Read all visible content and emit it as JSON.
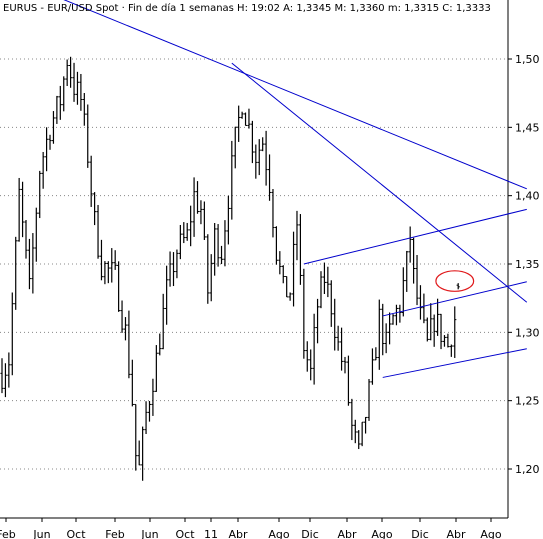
{
  "chart_data": {
    "type": "ohlc",
    "title": "EURUS - EUR/USD Spot · Fin de día 1 semanas  H: 19:02  A: 1,3345  M: 1,3360  m: 1,3315  C: 1,3333",
    "xlabel": "",
    "ylabel": "",
    "ylim": [
      1.18,
      1.53
    ],
    "y_ticks": [
      "1,20",
      "1,25",
      "1,30",
      "1,35",
      "1,40",
      "1,45",
      "1,50"
    ],
    "x_ticks": [
      "Feb",
      "Jun",
      "Oct",
      "Feb",
      "Jun",
      "Oct",
      "11",
      "Abr",
      "Ago",
      "Dic",
      "Abr",
      "Ago",
      "Dic",
      "Abr",
      "Ago"
    ],
    "grid": true,
    "grid_style": "horizontal dotted",
    "last_bar": {
      "open": 1.3345,
      "high": 1.336,
      "low": 1.3315,
      "close": 1.3333
    },
    "price_path_knots": [
      [
        0,
        1.27
      ],
      [
        2,
        1.28
      ],
      [
        5,
        1.4
      ],
      [
        8,
        1.33
      ],
      [
        11,
        1.42
      ],
      [
        14,
        1.45
      ],
      [
        17,
        1.47
      ],
      [
        19,
        1.5
      ],
      [
        21,
        1.48
      ],
      [
        23,
        1.47
      ],
      [
        25,
        1.43
      ],
      [
        27,
        1.38
      ],
      [
        29,
        1.35
      ],
      [
        33,
        1.34
      ],
      [
        36,
        1.3
      ],
      [
        38,
        1.25
      ],
      [
        39,
        1.21
      ],
      [
        40,
        1.2
      ],
      [
        42,
        1.24
      ],
      [
        45,
        1.28
      ],
      [
        48,
        1.33
      ],
      [
        51,
        1.36
      ],
      [
        54,
        1.37
      ],
      [
        56,
        1.4
      ],
      [
        58,
        1.39
      ],
      [
        60,
        1.33
      ],
      [
        62,
        1.37
      ],
      [
        64,
        1.36
      ],
      [
        66,
        1.4
      ],
      [
        68,
        1.44
      ],
      [
        70,
        1.47
      ],
      [
        72,
        1.45
      ],
      [
        74,
        1.43
      ],
      [
        76,
        1.44
      ],
      [
        78,
        1.41
      ],
      [
        80,
        1.36
      ],
      [
        82,
        1.33
      ],
      [
        84,
        1.33
      ],
      [
        86,
        1.38
      ],
      [
        88,
        1.29
      ],
      [
        90,
        1.27
      ],
      [
        92,
        1.32
      ],
      [
        94,
        1.34
      ],
      [
        96,
        1.32
      ],
      [
        98,
        1.29
      ],
      [
        100,
        1.27
      ],
      [
        102,
        1.23
      ],
      [
        104,
        1.21
      ],
      [
        106,
        1.24
      ],
      [
        108,
        1.27
      ],
      [
        110,
        1.31
      ],
      [
        112,
        1.29
      ],
      [
        114,
        1.31
      ],
      [
        116,
        1.32
      ],
      [
        118,
        1.35
      ],
      [
        119,
        1.37
      ],
      [
        120,
        1.34
      ],
      [
        122,
        1.31
      ],
      [
        124,
        1.29
      ],
      [
        126,
        1.31
      ],
      [
        128,
        1.3
      ],
      [
        130,
        1.29
      ],
      [
        132,
        1.31
      ],
      [
        133,
        1.3333
      ]
    ],
    "annotations": [
      {
        "kind": "trendline",
        "color": "#0000cc",
        "from": [
          -3,
          1.565
        ],
        "to": [
          153,
          1.405
        ]
      },
      {
        "kind": "trendline",
        "color": "#0000cc",
        "from": [
          67,
          1.497
        ],
        "to": [
          153,
          1.322
        ]
      },
      {
        "kind": "trendline",
        "color": "#0000cc",
        "from": [
          88,
          1.35
        ],
        "to": [
          153,
          1.39
        ]
      },
      {
        "kind": "trendline",
        "color": "#0000cc",
        "from": [
          111,
          1.312
        ],
        "to": [
          153,
          1.337
        ]
      },
      {
        "kind": "trendline",
        "color": "#0000cc",
        "from": [
          111,
          1.267
        ],
        "to": [
          153,
          1.288
        ]
      },
      {
        "kind": "ellipse",
        "color": "#e0191b",
        "center": [
          132,
          1.3375
        ],
        "rx": 5.5,
        "ry": 0.0075
      }
    ]
  }
}
